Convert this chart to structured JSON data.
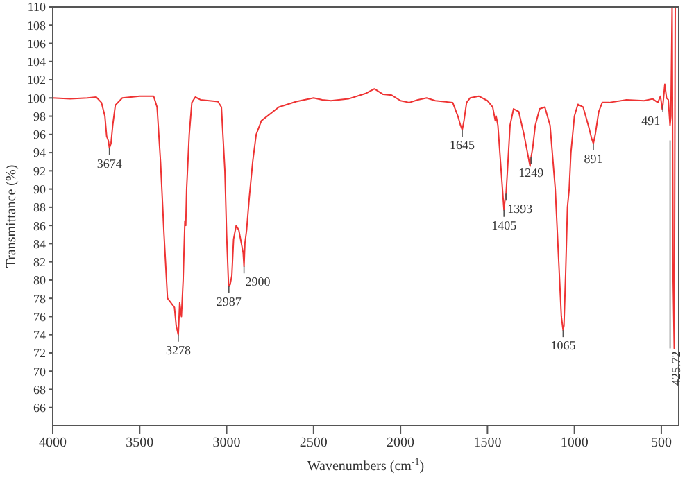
{
  "chart_data": {
    "type": "line",
    "xlabel": "Wavenumbers (cm$^{-1}$)",
    "ylabel": "Transmittance (%)",
    "xlim": [
      4000,
      400
    ],
    "xticks": [
      4000,
      3500,
      3000,
      2500,
      2000,
      1500,
      1000,
      500
    ],
    "ylim": [
      64,
      110
    ],
    "yticks": [
      66,
      68,
      70,
      72,
      74,
      76,
      78,
      80,
      82,
      84,
      86,
      88,
      90,
      92,
      94,
      96,
      98,
      100,
      102,
      104,
      106,
      108,
      110
    ],
    "marker": "none",
    "line_style": "solid",
    "x": [
      4000,
      3900,
      3800,
      3750,
      3720,
      3700,
      3690,
      3680,
      3674,
      3665,
      3655,
      3640,
      3600,
      3500,
      3420,
      3400,
      3380,
      3360,
      3340,
      3300,
      3290,
      3278,
      3270,
      3260,
      3250,
      3240,
      3235,
      3230,
      3215,
      3200,
      3180,
      3150,
      3100,
      3050,
      3030,
      3010,
      3000,
      2990,
      2987,
      2980,
      2970,
      2960,
      2945,
      2930,
      2915,
      2905,
      2900,
      2895,
      2885,
      2870,
      2850,
      2830,
      2800,
      2700,
      2600,
      2500,
      2450,
      2400,
      2300,
      2200,
      2150,
      2100,
      2050,
      2000,
      1950,
      1900,
      1850,
      1800,
      1700,
      1670,
      1655,
      1645,
      1635,
      1620,
      1600,
      1550,
      1500,
      1470,
      1455,
      1450,
      1440,
      1425,
      1410,
      1405,
      1398,
      1393,
      1385,
      1370,
      1350,
      1320,
      1290,
      1270,
      1255,
      1249,
      1240,
      1225,
      1200,
      1170,
      1140,
      1110,
      1090,
      1075,
      1065,
      1060,
      1050,
      1040,
      1030,
      1020,
      1000,
      980,
      950,
      920,
      900,
      891,
      880,
      860,
      840,
      800,
      700,
      600,
      550,
      520,
      505,
      495,
      491,
      480,
      470,
      460,
      450,
      445,
      438,
      432,
      425.72,
      420,
      415
    ],
    "series": [
      {
        "color": "#ee3333",
        "values": [
          100,
          99.9,
          100,
          100.1,
          99.5,
          98,
          95.8,
          95.3,
          94.5,
          95,
          97,
          99.2,
          100,
          100.2,
          100.2,
          99,
          93,
          85,
          78,
          77,
          75,
          74,
          77.5,
          76,
          80,
          86.5,
          86,
          90,
          96,
          99.5,
          100.1,
          99.8,
          99.7,
          99.6,
          99,
          92,
          85,
          80,
          79.3,
          79.5,
          80.5,
          84.5,
          86,
          85.5,
          84,
          83,
          81.5,
          84,
          85.5,
          89,
          93,
          96,
          97.5,
          99,
          99.6,
          100,
          99.8,
          99.7,
          99.9,
          100.5,
          101,
          100.4,
          100.3,
          99.7,
          99.5,
          99.8,
          100,
          99.7,
          99.5,
          98,
          97,
          96.5,
          97.5,
          99.5,
          100,
          100.2,
          99.7,
          99,
          97.5,
          98,
          97,
          93,
          89,
          87.7,
          89,
          89.5,
          92,
          97,
          98.8,
          98.5,
          96,
          94,
          92.5,
          93.5,
          94.5,
          97,
          98.8,
          99,
          97,
          90,
          82,
          76,
          74.5,
          75,
          81,
          88,
          90,
          94,
          98,
          99.3,
          99,
          97,
          95.5,
          95,
          96,
          98.5,
          99.5,
          99.5,
          99.8,
          99.7,
          99.9,
          99.5,
          100.2,
          98.8,
          99.2,
          101.5,
          100,
          99.8,
          97,
          98,
          110,
          80,
          72.5,
          110,
          110
        ]
      }
    ],
    "annotations": [
      {
        "text": "3674",
        "x": 3674,
        "y": 94.5
      },
      {
        "text": "3278",
        "x": 3278,
        "y": 74
      },
      {
        "text": "2987",
        "x": 2987,
        "y": 79.3
      },
      {
        "text": "2900",
        "x": 2900,
        "y": 81.5
      },
      {
        "text": "1645",
        "x": 1645,
        "y": 96.5
      },
      {
        "text": "1405",
        "x": 1405,
        "y": 87.7
      },
      {
        "text": "1393",
        "x": 1393,
        "y": 89.5
      },
      {
        "text": "1249",
        "x": 1249,
        "y": 93.5
      },
      {
        "text": "1065",
        "x": 1065,
        "y": 74.5
      },
      {
        "text": "891",
        "x": 891,
        "y": 95
      },
      {
        "text": "491",
        "x": 491,
        "y": 99.2
      },
      {
        "text": "425.72",
        "x": 425.72,
        "y": 72.5
      }
    ]
  }
}
